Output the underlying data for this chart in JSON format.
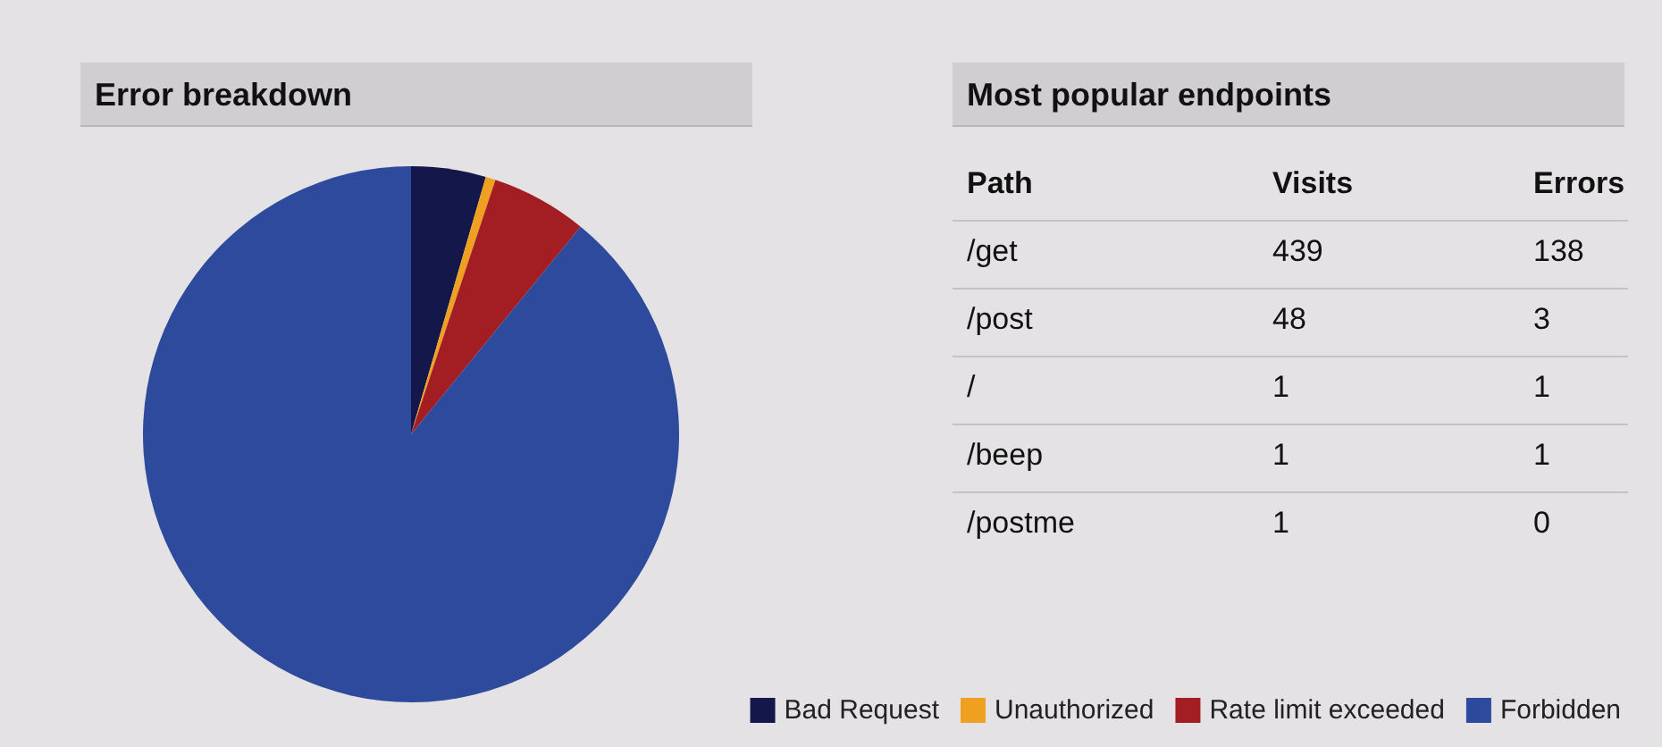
{
  "chart_data": [
    {
      "type": "pie",
      "title": "Error breakdown",
      "categories": [
        "Bad Request",
        "Unauthorized",
        "Rate limit exceeded",
        "Forbidden"
      ],
      "values": [
        4.5,
        0.6,
        5.8,
        89.1
      ],
      "colors": [
        "#14174a",
        "#f0a020",
        "#a31e22",
        "#2e4a9c"
      ],
      "legend": "bottom right"
    },
    {
      "type": "other",
      "title": "Most popular endpoints",
      "xlabel": "Path",
      "categories": [
        "/get",
        "/post",
        "/",
        "/beep",
        "/postme"
      ],
      "series": [
        {
          "name": "Visits",
          "values": [
            439,
            48,
            1,
            1,
            1
          ]
        },
        {
          "name": "Errors",
          "values": [
            138,
            3,
            1,
            1,
            0
          ]
        }
      ],
      "data_labels": true
    }
  ]
}
